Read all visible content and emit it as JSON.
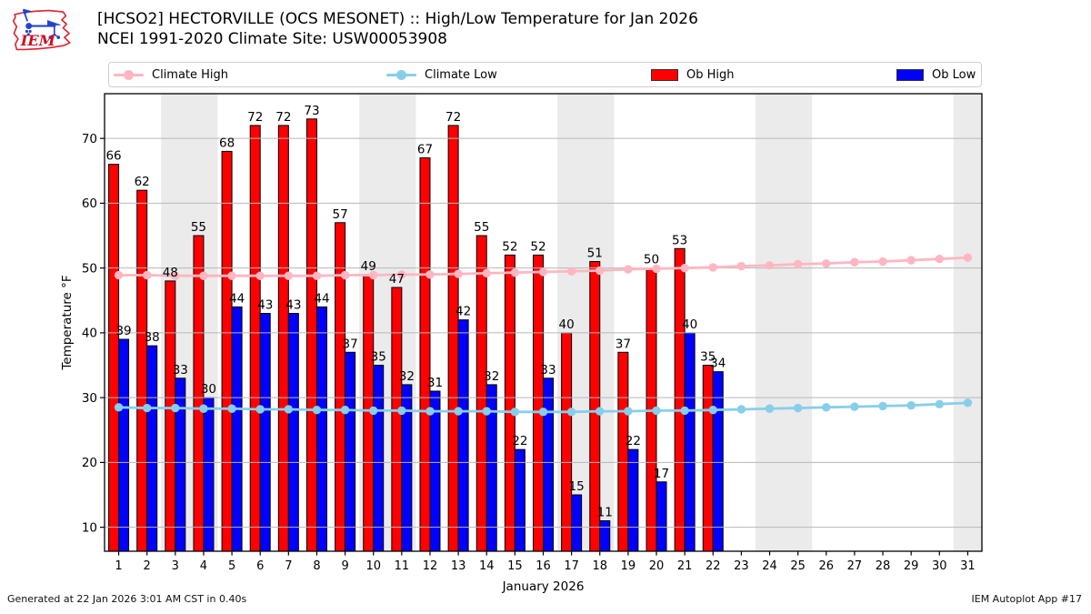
{
  "header": {
    "title": "[HCSO2] HECTORVILLE (OCS MESONET) :: High/Low Temperature for Jan 2026",
    "subtitle": "NCEI 1991-2020 Climate Site: USW00053908",
    "logo_text": "IEM"
  },
  "legend": {
    "items": [
      {
        "label": "Climate High",
        "swatch": "line-marker",
        "color": "#ffb6c1"
      },
      {
        "label": "Climate Low",
        "swatch": "line-marker",
        "color": "#87ceeb"
      },
      {
        "label": "Ob High",
        "swatch": "patch",
        "color": "#ff0000"
      },
      {
        "label": "Ob Low",
        "swatch": "patch",
        "color": "#0000ff"
      }
    ]
  },
  "footer": {
    "generated": "Generated at 22 Jan 2026 3:01 AM CST in 0.40s",
    "app": "IEM Autoplot App #17"
  },
  "chart_data": {
    "type": "bar",
    "title": "[HCSO2] HECTORVILLE (OCS MESONET) :: High/Low Temperature for Jan 2026",
    "subtitle": "NCEI 1991-2020 Climate Site: USW00053908",
    "xlabel": "January 2026",
    "ylabel": "Temperature °F",
    "x": [
      1,
      2,
      3,
      4,
      5,
      6,
      7,
      8,
      9,
      10,
      11,
      12,
      13,
      14,
      15,
      16,
      17,
      18,
      19,
      20,
      21,
      22,
      23,
      24,
      25,
      26,
      27,
      28,
      29,
      30,
      31
    ],
    "ylim": [
      6.3,
      76.9
    ],
    "yticks": [
      10,
      20,
      30,
      40,
      50,
      60,
      70
    ],
    "grid": true,
    "legend_position": "top",
    "weekend_shading_days": [
      [
        3,
        4
      ],
      [
        10,
        11
      ],
      [
        17,
        18
      ],
      [
        24,
        25
      ],
      [
        31,
        31
      ]
    ],
    "band_color": "#ebebeb",
    "series": [
      {
        "name": "Ob High",
        "type": "bar",
        "color": "#ff0000",
        "show_labels": true,
        "values": [
          66,
          62,
          48,
          55,
          68,
          72,
          72,
          73,
          57,
          49,
          47,
          67,
          72,
          55,
          52,
          52,
          40,
          51,
          37,
          50,
          53,
          35
        ]
      },
      {
        "name": "Ob Low",
        "type": "bar",
        "color": "#0000ff",
        "show_labels": true,
        "values": [
          39,
          38,
          33,
          30,
          44,
          43,
          43,
          44,
          37,
          35,
          32,
          31,
          42,
          32,
          22,
          33,
          15,
          11,
          22,
          17,
          40,
          34
        ]
      },
      {
        "name": "Climate High",
        "type": "line",
        "color": "#ffb6c1",
        "values": [
          48.9,
          48.9,
          48.8,
          48.8,
          48.8,
          48.8,
          48.8,
          48.8,
          48.9,
          48.9,
          49.0,
          49.0,
          49.1,
          49.2,
          49.3,
          49.4,
          49.5,
          49.6,
          49.8,
          49.9,
          50.0,
          50.1,
          50.3,
          50.4,
          50.6,
          50.7,
          50.9,
          51.0,
          51.2,
          51.4,
          51.6
        ]
      },
      {
        "name": "Climate Low",
        "type": "line",
        "color": "#87ceeb",
        "values": [
          28.5,
          28.4,
          28.4,
          28.3,
          28.3,
          28.2,
          28.2,
          28.1,
          28.1,
          28.0,
          28.0,
          27.9,
          27.9,
          27.9,
          27.8,
          27.8,
          27.8,
          27.9,
          27.9,
          28.0,
          28.0,
          28.1,
          28.2,
          28.3,
          28.4,
          28.5,
          28.6,
          28.7,
          28.8,
          29.0,
          29.2
        ]
      }
    ]
  }
}
